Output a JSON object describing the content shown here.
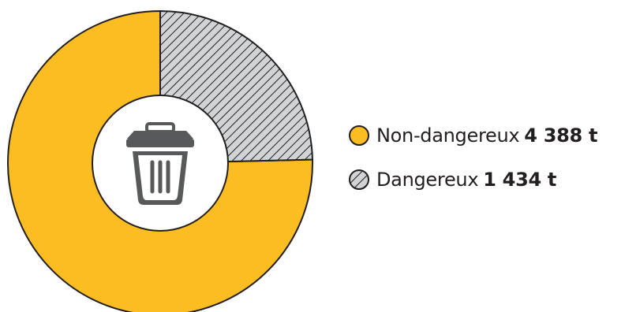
{
  "chart_data": {
    "type": "pie",
    "donut": true,
    "center_icon": "trash-can-icon",
    "unit": "t",
    "slices": [
      {
        "label": "Non-dangereux",
        "value": 4388,
        "value_text": "4 388 t",
        "color": "#fbbd21",
        "pattern": "solid"
      },
      {
        "label": "Dangereux",
        "value": 1434,
        "value_text": "1 434 t",
        "color": "#d1d3d4",
        "pattern": "diagonal-hatch"
      }
    ],
    "legend": {
      "placement": "right"
    }
  },
  "colors": {
    "outline": "#231f20",
    "hatch_background": "#d1d3d4",
    "icon": "#58595b"
  }
}
